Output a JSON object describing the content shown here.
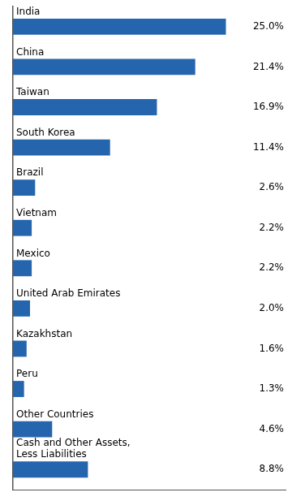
{
  "chart_data": {
    "type": "bar",
    "orientation": "horizontal",
    "categories": [
      "India",
      "China",
      "Taiwan",
      "South Korea",
      "Brazil",
      "Vietnam",
      "Mexico",
      "United Arab Emirates",
      "Kazakhstan",
      "Peru",
      "Other Countries",
      "Cash and Other Assets,\nLess Liabilities"
    ],
    "values": [
      25.0,
      21.4,
      16.9,
      11.4,
      2.6,
      2.2,
      2.2,
      2.0,
      1.6,
      1.3,
      4.6,
      8.8
    ],
    "value_labels": [
      "25.0%",
      "21.4%",
      "16.9%",
      "11.4%",
      "2.6%",
      "2.2%",
      "2.2%",
      "2.0%",
      "1.6%",
      "1.3%",
      "4.6%",
      "8.8%"
    ],
    "color": "#2565AE",
    "xlim": [
      0,
      32
    ],
    "xticks": [],
    "tick_labels": false,
    "grid": false,
    "data_labels": true
  }
}
